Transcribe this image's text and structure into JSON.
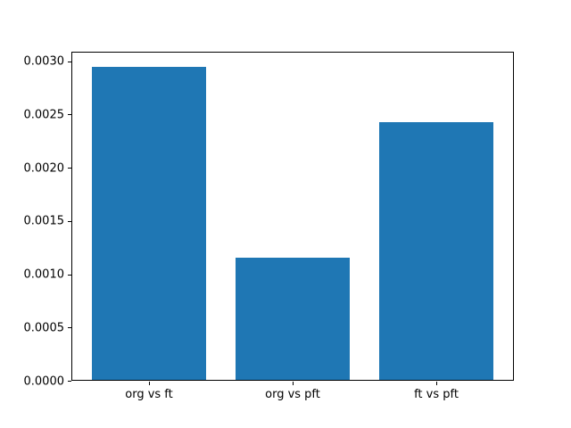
{
  "chart_data": {
    "type": "bar",
    "title": "",
    "xlabel": "",
    "ylabel": "",
    "categories": [
      "org vs ft",
      "org vs pft",
      "ft vs pft"
    ],
    "values": [
      0.00295,
      0.00116,
      0.00243
    ],
    "bar_width": 0.8,
    "bar_color": "#1f77b4",
    "ylim": [
      0,
      0.00309
    ],
    "yticks": [
      0.0,
      0.0005,
      0.001,
      0.0015,
      0.002,
      0.0025,
      0.003
    ],
    "ytick_labels": [
      "0.0000",
      "0.0005",
      "0.0010",
      "0.0015",
      "0.0020",
      "0.0025",
      "0.0030"
    ],
    "grid": false,
    "legend": null,
    "background_color": "#ffffff",
    "axis_color": "#000000",
    "text_color": "#000000"
  }
}
